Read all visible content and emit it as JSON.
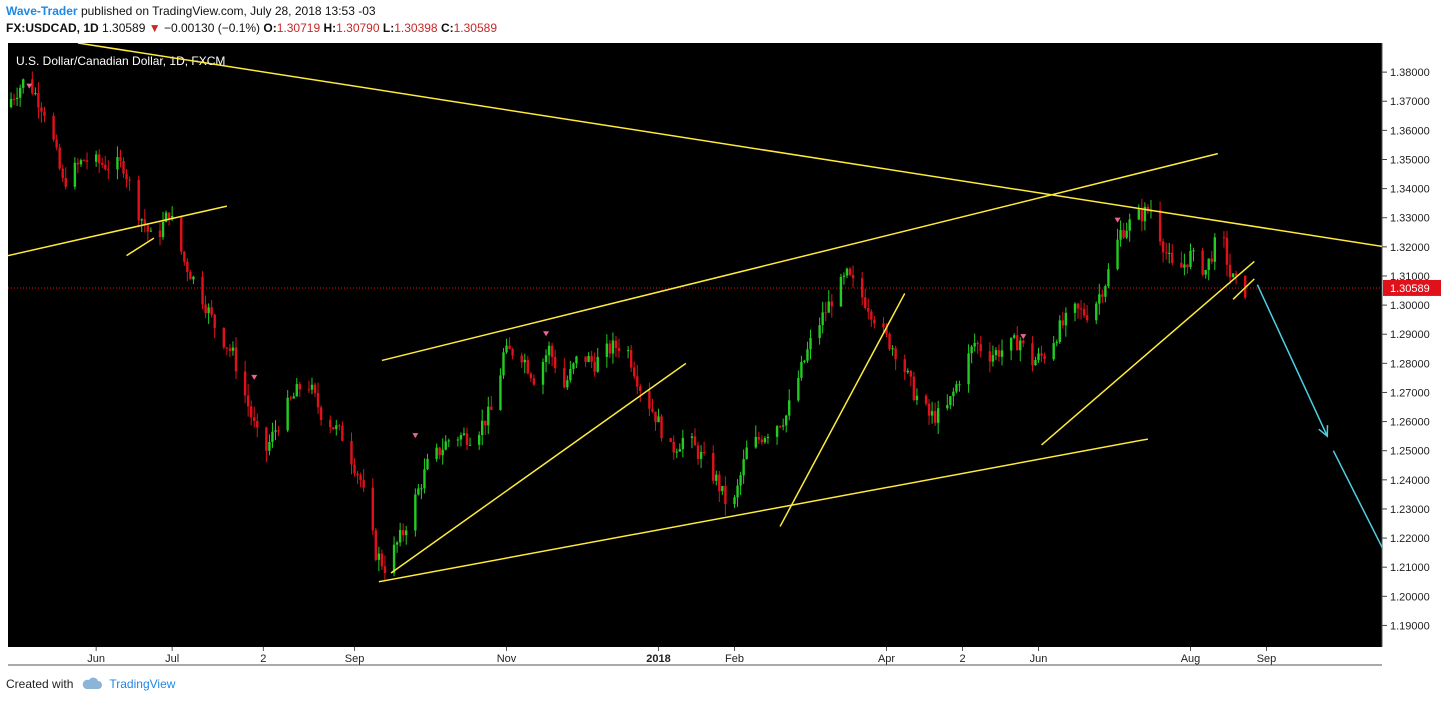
{
  "header": {
    "author": "Wave-Trader",
    "published_text": "published on TradingView.com, July 28, 2018 13:53 -03",
    "symbol": "FX:USDCAD, 1D",
    "price": "1.30589",
    "change_arrow": "▼",
    "change": "−0.00130 (−0.1%)",
    "o_label": "O:",
    "o_value": "1.30719",
    "h_label": "H:",
    "h_value": "1.30790",
    "l_label": "L:",
    "l_value": "1.30398",
    "c_label": "C:",
    "c_value": "1.30589"
  },
  "footer": {
    "created_with": "Created with",
    "brand": "TradingView",
    "logo_icon": "tradingview-cloud-icon"
  },
  "colors": {
    "up": "#22cc22",
    "down": "#e0111b",
    "trend": "#ffeb3b",
    "arrow": "#4dd0e1",
    "price_line": "#e0111b",
    "background": "#000000"
  },
  "chart_data": {
    "type": "candlestick",
    "title": "U.S. Dollar/Canadian Dollar, 1D, FXCM",
    "ylim": [
      1.185,
      1.39
    ],
    "y_ticks": [
      "1.38000",
      "1.37000",
      "1.36000",
      "1.35000",
      "1.34000",
      "1.33000",
      "1.32000",
      "1.31000",
      "1.30000",
      "1.29000",
      "1.28000",
      "1.27000",
      "1.26000",
      "1.25000",
      "1.24000",
      "1.23000",
      "1.22000",
      "1.21000",
      "1.20000",
      "1.19000"
    ],
    "x_ticks": [
      "Jun",
      "Jul",
      "2",
      "Sep",
      "Nov",
      "2018",
      "Feb",
      "Apr",
      "2",
      "Jun",
      "Aug",
      "Sep"
    ],
    "x_tick_days": [
      0,
      25,
      55,
      85,
      135,
      185,
      210,
      260,
      285,
      310,
      360,
      385
    ],
    "x_range_days": [
      -29,
      423
    ],
    "last_price_label": "1.30589",
    "last_price": 1.30589,
    "price_path": [
      [
        -29,
        1.368
      ],
      [
        -22,
        1.378
      ],
      [
        -15,
        1.365
      ],
      [
        -10,
        1.342
      ],
      [
        -3,
        1.35
      ],
      [
        5,
        1.348
      ],
      [
        10,
        1.348
      ],
      [
        15,
        1.332
      ],
      [
        20,
        1.321
      ],
      [
        25,
        1.332
      ],
      [
        30,
        1.315
      ],
      [
        35,
        1.305
      ],
      [
        40,
        1.293
      ],
      [
        46,
        1.283
      ],
      [
        52,
        1.262
      ],
      [
        56,
        1.248
      ],
      [
        62,
        1.262
      ],
      [
        70,
        1.275
      ],
      [
        75,
        1.263
      ],
      [
        82,
        1.255
      ],
      [
        88,
        1.24
      ],
      [
        93,
        1.215
      ],
      [
        96,
        1.21
      ],
      [
        102,
        1.222
      ],
      [
        110,
        1.245
      ],
      [
        118,
        1.255
      ],
      [
        125,
        1.255
      ],
      [
        132,
        1.265
      ],
      [
        135,
        1.283
      ],
      [
        140,
        1.285
      ],
      [
        145,
        1.275
      ],
      [
        150,
        1.285
      ],
      [
        155,
        1.272
      ],
      [
        160,
        1.283
      ],
      [
        165,
        1.28
      ],
      [
        170,
        1.285
      ],
      [
        175,
        1.287
      ],
      [
        180,
        1.272
      ],
      [
        185,
        1.262
      ],
      [
        190,
        1.25
      ],
      [
        195,
        1.255
      ],
      [
        200,
        1.248
      ],
      [
        205,
        1.24
      ],
      [
        210,
        1.228
      ],
      [
        215,
        1.25
      ],
      [
        220,
        1.255
      ],
      [
        228,
        1.262
      ],
      [
        232,
        1.275
      ],
      [
        237,
        1.29
      ],
      [
        243,
        1.302
      ],
      [
        248,
        1.31
      ],
      [
        255,
        1.3
      ],
      [
        260,
        1.29
      ],
      [
        265,
        1.283
      ],
      [
        270,
        1.27
      ],
      [
        275,
        1.262
      ],
      [
        280,
        1.262
      ],
      [
        285,
        1.275
      ],
      [
        290,
        1.287
      ],
      [
        295,
        1.283
      ],
      [
        300,
        1.285
      ],
      [
        305,
        1.288
      ],
      [
        308,
        1.28
      ],
      [
        313,
        1.283
      ],
      [
        318,
        1.292
      ],
      [
        323,
        1.298
      ],
      [
        328,
        1.297
      ],
      [
        333,
        1.308
      ],
      [
        338,
        1.325
      ],
      [
        343,
        1.33
      ],
      [
        348,
        1.333
      ],
      [
        353,
        1.318
      ],
      [
        356,
        1.31
      ],
      [
        361,
        1.317
      ],
      [
        366,
        1.312
      ],
      [
        371,
        1.326
      ],
      [
        374,
        1.31
      ],
      [
        378,
        1.305
      ]
    ],
    "trend_lines": [
      [
        [
          -6,
          1.39
        ],
        [
          424,
          1.32
        ]
      ],
      [
        [
          -29,
          1.317
        ],
        [
          43,
          1.334
        ]
      ],
      [
        [
          10,
          1.317
        ],
        [
          19,
          1.323
        ]
      ],
      [
        [
          93,
          1.205
        ],
        [
          346,
          1.254
        ]
      ],
      [
        [
          94,
          1.281
        ],
        [
          369,
          1.352
        ]
      ],
      [
        [
          97,
          1.208
        ],
        [
          194,
          1.28
        ]
      ],
      [
        [
          225,
          1.224
        ],
        [
          266,
          1.304
        ]
      ],
      [
        [
          311,
          1.252
        ],
        [
          381,
          1.315
        ]
      ],
      [
        [
          374,
          1.302
        ],
        [
          381,
          1.309
        ]
      ]
    ],
    "projection_arrows": [
      [
        [
          382,
          1.307
        ],
        [
          405,
          1.255
        ]
      ],
      [
        [
          407,
          1.25
        ],
        [
          436,
          1.19
        ]
      ]
    ],
    "signal_markers": [
      [
        -22,
        1.375
      ],
      [
        52,
        1.275
      ],
      [
        105,
        1.255
      ],
      [
        148,
        1.29
      ],
      [
        336,
        1.329
      ],
      [
        305,
        1.289
      ]
    ]
  }
}
